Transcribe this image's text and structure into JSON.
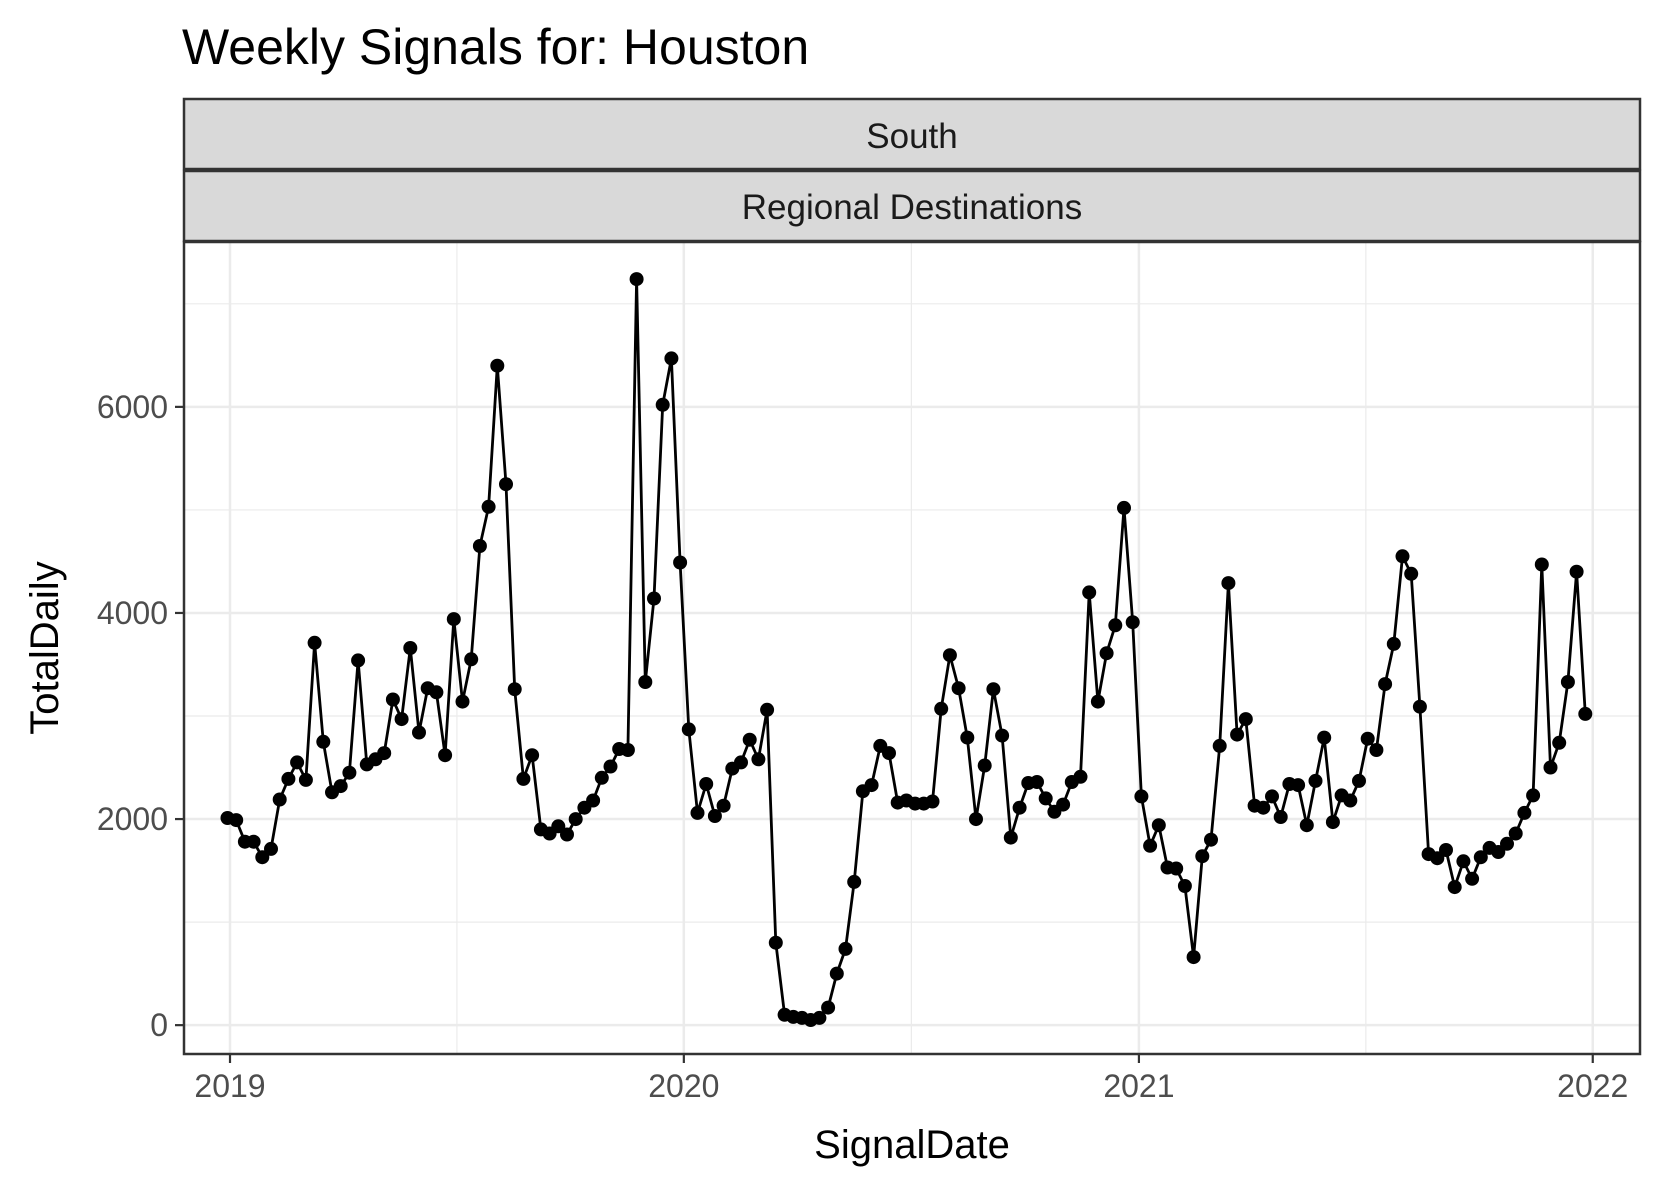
{
  "chart_data": {
    "type": "line",
    "title": "Weekly Signals for: Houston",
    "facet_strips": [
      "South",
      "Regional Destinations"
    ],
    "xlabel": "SignalDate",
    "ylabel": "TotalDaily",
    "x_tick_labels": [
      "2019",
      "2020",
      "2021",
      "2022"
    ],
    "y_tick_labels": [
      "0",
      "2000",
      "4000",
      "6000"
    ],
    "xlim": [
      "2018-11-25",
      "2022-02-08"
    ],
    "ylim": [
      -280,
      7600
    ],
    "grid": true,
    "theme": "bw",
    "colors": {
      "line": "#000000",
      "points": "#000000",
      "strip_fill": "#d9d9d9",
      "border": "#333333",
      "grid": "#ebebeb"
    },
    "series": [
      {
        "x": [
          "2018-12-30",
          "2019-01-06",
          "2019-01-13",
          "2019-01-20",
          "2019-01-27",
          "2019-02-03",
          "2019-02-10",
          "2019-02-17",
          "2019-02-24",
          "2019-03-03",
          "2019-03-10",
          "2019-03-17",
          "2019-03-24",
          "2019-03-31",
          "2019-04-07",
          "2019-04-14",
          "2019-04-21",
          "2019-04-28",
          "2019-05-05",
          "2019-05-12",
          "2019-05-19",
          "2019-05-26",
          "2019-06-02",
          "2019-06-09",
          "2019-06-16",
          "2019-06-23",
          "2019-06-30",
          "2019-07-07",
          "2019-07-14",
          "2019-07-21",
          "2019-07-28",
          "2019-08-04",
          "2019-08-11",
          "2019-08-18",
          "2019-08-25",
          "2019-09-01",
          "2019-09-08",
          "2019-09-15",
          "2019-09-22",
          "2019-09-29",
          "2019-10-06",
          "2019-10-13",
          "2019-10-20",
          "2019-10-27",
          "2019-11-03",
          "2019-11-10",
          "2019-11-17",
          "2019-11-24",
          "2019-12-01",
          "2019-12-08",
          "2019-12-15",
          "2019-12-22",
          "2019-12-29",
          "2020-01-05",
          "2020-01-12",
          "2020-01-19",
          "2020-01-26",
          "2020-02-02",
          "2020-02-09",
          "2020-02-16",
          "2020-02-23",
          "2020-03-01",
          "2020-03-08",
          "2020-03-15",
          "2020-03-22",
          "2020-03-29",
          "2020-04-05",
          "2020-04-12",
          "2020-04-19",
          "2020-04-26",
          "2020-05-03",
          "2020-05-10",
          "2020-05-17",
          "2020-05-24",
          "2020-05-31",
          "2020-06-07",
          "2020-06-14",
          "2020-06-21",
          "2020-06-28",
          "2020-07-05",
          "2020-07-12",
          "2020-07-19",
          "2020-07-26",
          "2020-08-02",
          "2020-08-09",
          "2020-08-16",
          "2020-08-23",
          "2020-08-30",
          "2020-09-06",
          "2020-09-13",
          "2020-09-20",
          "2020-09-27",
          "2020-10-04",
          "2020-10-11",
          "2020-10-18",
          "2020-10-25",
          "2020-11-01",
          "2020-11-08",
          "2020-11-15",
          "2020-11-22",
          "2020-11-29",
          "2020-12-06",
          "2020-12-13",
          "2020-12-20",
          "2020-12-27",
          "2021-01-03",
          "2021-01-10",
          "2021-01-17",
          "2021-01-24",
          "2021-01-31",
          "2021-02-07",
          "2021-02-14",
          "2021-02-21",
          "2021-02-28",
          "2021-03-07",
          "2021-03-14",
          "2021-03-21",
          "2021-03-28",
          "2021-04-04",
          "2021-04-11",
          "2021-04-18",
          "2021-04-25",
          "2021-05-02",
          "2021-05-09",
          "2021-05-16",
          "2021-05-23",
          "2021-05-30",
          "2021-06-06",
          "2021-06-13",
          "2021-06-20",
          "2021-06-27",
          "2021-07-04",
          "2021-07-11",
          "2021-07-18",
          "2021-07-25",
          "2021-08-01",
          "2021-08-08",
          "2021-08-15",
          "2021-08-22",
          "2021-08-29",
          "2021-09-05",
          "2021-09-12",
          "2021-09-19",
          "2021-09-26",
          "2021-10-03",
          "2021-10-10",
          "2021-10-17",
          "2021-10-24",
          "2021-10-31",
          "2021-11-07",
          "2021-11-14",
          "2021-11-21",
          "2021-11-28",
          "2021-12-05",
          "2021-12-12",
          "2021-12-19",
          "2021-12-26"
        ],
        "y": [
          2010,
          1990,
          1780,
          1780,
          1630,
          1710,
          2190,
          2390,
          2550,
          2380,
          3710,
          2750,
          2260,
          2320,
          2450,
          3540,
          2530,
          2580,
          2640,
          3160,
          2970,
          3660,
          2840,
          3270,
          3230,
          2620,
          3940,
          3140,
          3550,
          4650,
          5030,
          6400,
          5250,
          3260,
          2390,
          2620,
          1900,
          1860,
          1930,
          1850,
          2000,
          2110,
          2180,
          2400,
          2510,
          2680,
          2670,
          7240,
          3330,
          4140,
          6020,
          6470,
          4490,
          2870,
          2060,
          2340,
          2030,
          2130,
          2490,
          2550,
          2770,
          2580,
          3060,
          800,
          100,
          80,
          70,
          50,
          70,
          170,
          500,
          740,
          1390,
          2270,
          2330,
          2710,
          2640,
          2160,
          2180,
          2150,
          2150,
          2170,
          3070,
          3590,
          3270,
          2790,
          2000,
          2520,
          3260,
          2810,
          1820,
          2110,
          2350,
          2360,
          2200,
          2070,
          2140,
          2360,
          2410,
          4200,
          3140,
          3610,
          3880,
          5020,
          3910,
          2220,
          1740,
          1940,
          1530,
          1520,
          1350,
          660,
          1640,
          1800,
          2710,
          4290,
          2820,
          2970,
          2130,
          2110,
          2220,
          2020,
          2340,
          2330,
          1940,
          2370,
          2790,
          1970,
          2230,
          2180,
          2370,
          2780,
          2670,
          3310,
          3700,
          4550,
          4380,
          3090,
          1660,
          1620,
          1700,
          1340,
          1590,
          1420,
          1630,
          1720,
          1680,
          1760,
          1860,
          2060,
          2230,
          4470,
          2500,
          2740,
          3330,
          4400,
          3020
        ]
      }
    ]
  }
}
